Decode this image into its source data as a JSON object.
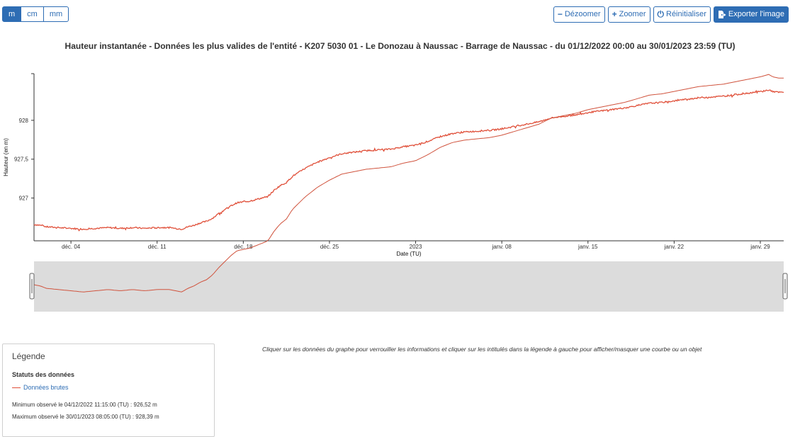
{
  "units": {
    "m": "m",
    "cm": "cm",
    "mm": "mm"
  },
  "toolbar": {
    "dezoom": "Dézoomer",
    "zoom": "Zoomer",
    "reset": "Réinitialiser",
    "export": "Exporter l'image"
  },
  "legend": {
    "title": "Légende",
    "section": "Statuts des données",
    "item": "Données brutes",
    "minimum": "Minimum observé le 04/12/2022 11:15:00 (TU) : 926,52 m",
    "maximum": "Maximum observé le 30/01/2023 08:05:00 (TU) : 928,39 m"
  },
  "hint": "Cliquer sur les données du graphe pour verrouiller les informations et cliquer sur les intitulés dans la légende à gauche pour afficher/masquer une courbe ou un objet",
  "colors": {
    "series": "#e0503a",
    "accent": "#2e6db4",
    "navigator_bg": "#dcdcdc"
  },
  "chart_data": {
    "type": "line",
    "title": "Hauteur instantanée - Données les plus valides de l'entité - K207 5030 01 - Le Donozau à Naussac - Barrage de Naussac - du 01/12/2022 00:00 au 30/01/2023 23:59 (TU)",
    "xlabel": "Date (TU)",
    "ylabel": "Hauteur (en m)",
    "x_ticks": [
      {
        "day": 3,
        "label": "déc. 04"
      },
      {
        "day": 10,
        "label": "déc. 11"
      },
      {
        "day": 17,
        "label": "déc. 18"
      },
      {
        "day": 24,
        "label": "déc. 25"
      },
      {
        "day": 31,
        "label": "2023"
      },
      {
        "day": 38,
        "label": "janv. 08"
      },
      {
        "day": 45,
        "label": "janv. 15"
      },
      {
        "day": 52,
        "label": "janv. 22"
      },
      {
        "day": 59,
        "label": "janv. 29"
      }
    ],
    "y_ticks": [
      {
        "value": 927,
        "label": "927"
      },
      {
        "value": 927.5,
        "label": "927,5"
      },
      {
        "value": 928,
        "label": "928"
      }
    ],
    "xlim_days_since_start": [
      0,
      60.9
    ],
    "ylim": [
      926.45,
      928.6
    ],
    "series": [
      {
        "name": "Données brutes",
        "x_days_since_start": [
          0.0,
          0.5,
          1.0,
          2.0,
          3.0,
          4.0,
          5.0,
          6.0,
          7.0,
          8.0,
          9.0,
          10.0,
          11.0,
          11.5,
          12.0,
          12.5,
          13.0,
          13.5,
          14.0,
          14.5,
          15.0,
          15.5,
          16.0,
          16.5,
          17.0,
          17.5,
          18.0,
          19.0,
          19.5,
          20.0,
          20.5,
          21.0,
          22.0,
          23.0,
          24.0,
          25.0,
          26.0,
          27.0,
          28.0,
          29.0,
          30.0,
          31.0,
          32.0,
          33.0,
          34.0,
          35.0,
          36.0,
          37.0,
          38.0,
          39.0,
          40.0,
          41.0,
          42.0,
          43.0,
          44.0,
          45.0,
          46.0,
          47.0,
          48.0,
          49.0,
          50.0,
          51.0,
          52.0,
          53.0,
          54.0,
          55.0,
          56.0,
          57.0,
          58.0,
          59.0,
          59.7,
          60.0,
          60.5,
          60.9
        ],
        "values": [
          926.66,
          926.65,
          926.63,
          926.62,
          926.61,
          926.6,
          926.61,
          926.62,
          926.61,
          926.62,
          926.61,
          926.62,
          926.62,
          926.61,
          926.6,
          926.63,
          926.65,
          926.68,
          926.7,
          926.74,
          926.8,
          926.85,
          926.9,
          926.94,
          926.95,
          926.96,
          926.98,
          927.02,
          927.1,
          927.16,
          927.2,
          927.28,
          927.38,
          927.46,
          927.52,
          927.57,
          927.59,
          927.61,
          927.62,
          927.63,
          927.66,
          927.68,
          927.73,
          927.79,
          927.83,
          927.85,
          927.86,
          927.87,
          927.89,
          927.92,
          927.95,
          927.98,
          928.03,
          928.05,
          928.07,
          928.1,
          928.12,
          928.14,
          928.16,
          928.19,
          928.22,
          928.23,
          928.25,
          928.27,
          928.29,
          928.3,
          928.31,
          928.33,
          928.35,
          928.37,
          928.39,
          928.37,
          928.36,
          928.36
        ]
      }
    ],
    "grid": false
  }
}
